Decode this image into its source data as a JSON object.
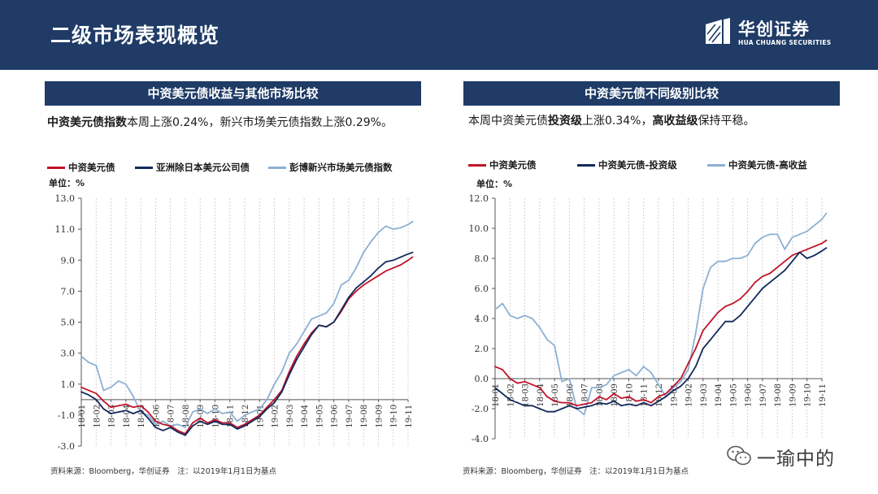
{
  "header": {
    "title": "二级市场表现概览",
    "logo_cn": "华创证券",
    "logo_en": "HUA CHUANG SECURITIES",
    "bg_color": "#1f3b66"
  },
  "left_panel": {
    "title": "中资美元债收益与其他市场比较",
    "desc_bold": "中资美元债指数",
    "desc_rest": "本周上涨0.24%，新兴市场美元债指数上涨0.29%。",
    "unit": "单位：%",
    "source": "资料来源：Bloomberg，华创证券　注：以2019年1月1日为基点"
  },
  "right_panel": {
    "title": "中资美元债不同级别比较",
    "desc_p1": "本周中资美元债",
    "desc_b1": "投资级",
    "desc_p2": "上涨0.34%，",
    "desc_b2": "高收益级",
    "desc_p3": "保持平稳。",
    "unit": "单位：%",
    "source": "资料来源：Bloomberg，华创证券　注：以2019年1月1日为基点"
  },
  "watermark": {
    "text": "一瑜中的"
  },
  "colors": {
    "red": "#c0142a",
    "navy": "#142a5c",
    "light": "#8db0d3"
  },
  "chart_data": [
    {
      "type": "line",
      "title": "中资美元债收益与其他市场比较",
      "ylabel": "单位：%",
      "ylim": [
        -3.0,
        13.0
      ],
      "yticks": [
        -3.0,
        -1.0,
        1.0,
        3.0,
        5.0,
        7.0,
        9.0,
        11.0,
        13.0
      ],
      "ytick_labels": [
        "-3.0",
        "-1.0",
        "1.0",
        "3.0",
        "5.0",
        "7.0",
        "9.0",
        "11.0",
        "13.0"
      ],
      "categories": [
        "18-01",
        "18-02",
        "18-03",
        "18-04",
        "18-05",
        "18-06",
        "18-07",
        "18-08",
        "18-09",
        "18-10",
        "18-11",
        "18-12",
        "19-01",
        "19-02",
        "19-03",
        "19-04",
        "19-05",
        "19-06",
        "19-07",
        "19-08",
        "19-09",
        "19-10",
        "19-11"
      ],
      "x": [
        0,
        0.5,
        1,
        1.5,
        2,
        2.5,
        3,
        3.5,
        4,
        4.5,
        5,
        5.5,
        6,
        6.5,
        7,
        7.5,
        8,
        8.5,
        9,
        9.5,
        10,
        10.5,
        11,
        11.5,
        12,
        12.5,
        13,
        13.5,
        14,
        14.5,
        15,
        15.5,
        16,
        16.5,
        17,
        17.5,
        18,
        18.5,
        19,
        19.5,
        20,
        20.5,
        21,
        21.5,
        22,
        22.3
      ],
      "series": [
        {
          "name": "中资美元债",
          "color": "#c0142a",
          "values": [
            0.8,
            0.6,
            0.4,
            -0.1,
            -0.5,
            -0.4,
            -0.3,
            -0.5,
            -0.4,
            -0.8,
            -1.4,
            -1.6,
            -1.7,
            -2.0,
            -2.2,
            -1.5,
            -1.2,
            -1.5,
            -1.3,
            -1.5,
            -1.5,
            -1.8,
            -1.6,
            -1.3,
            -1.0,
            -0.5,
            0.0,
            0.6,
            1.8,
            2.8,
            3.6,
            4.3,
            4.8,
            4.7,
            5.0,
            5.7,
            6.5,
            7.0,
            7.4,
            7.7,
            8.0,
            8.3,
            8.5,
            8.7,
            9.0,
            9.2
          ]
        },
        {
          "name": "亚洲除日本美元公司债",
          "color": "#142a5c",
          "values": [
            0.5,
            0.3,
            0.0,
            -0.6,
            -0.9,
            -0.8,
            -0.7,
            -0.9,
            -0.7,
            -1.2,
            -1.8,
            -2.0,
            -1.8,
            -2.1,
            -2.3,
            -1.7,
            -1.4,
            -1.6,
            -1.4,
            -1.6,
            -1.6,
            -1.9,
            -1.7,
            -1.4,
            -1.1,
            -0.6,
            -0.2,
            0.5,
            1.6,
            2.6,
            3.4,
            4.2,
            4.8,
            4.7,
            5.0,
            5.8,
            6.6,
            7.2,
            7.6,
            8.0,
            8.5,
            8.9,
            9.0,
            9.2,
            9.4,
            9.5
          ]
        },
        {
          "name": "彭博新兴市场美元债指数",
          "color": "#8db0d3",
          "values": [
            2.8,
            2.4,
            2.2,
            0.6,
            0.8,
            1.2,
            1.0,
            0.2,
            -0.8,
            -1.0,
            -1.6,
            -1.4,
            -1.7,
            -1.6,
            -1.8,
            -0.8,
            -0.6,
            -0.9,
            -0.6,
            -0.9,
            -0.8,
            -1.4,
            -1.0,
            -0.8,
            -0.6,
            0.0,
            1.0,
            1.8,
            3.0,
            3.6,
            4.4,
            5.2,
            5.4,
            5.6,
            6.2,
            7.4,
            7.7,
            8.5,
            9.5,
            10.2,
            10.8,
            11.2,
            11.0,
            11.1,
            11.3,
            11.5
          ]
        }
      ],
      "legend": [
        "中资美元债",
        "亚洲除日本美元公司债",
        "彭博新兴市场美元债指数"
      ],
      "grid": true
    },
    {
      "type": "line",
      "title": "中资美元债不同级别比较",
      "ylabel": "单位：%",
      "ylim": [
        -4.0,
        12.0
      ],
      "yticks": [
        -4.0,
        -2.0,
        0.0,
        2.0,
        4.0,
        6.0,
        8.0,
        10.0,
        12.0
      ],
      "ytick_labels": [
        "-4.0",
        "-2.0",
        "0.0",
        "2.0",
        "4.0",
        "6.0",
        "8.0",
        "10.0",
        "12.0"
      ],
      "categories": [
        "18-01",
        "18-02",
        "18-03",
        "18-04",
        "18-05",
        "18-06",
        "18-07",
        "18-08",
        "18-09",
        "18-10",
        "18-11",
        "18-12",
        "19-01",
        "19-02",
        "19-03",
        "19-04",
        "19-05",
        "19-06",
        "19-07",
        "19-08",
        "19-09",
        "19-10",
        "19-11"
      ],
      "x": [
        0,
        0.5,
        1,
        1.5,
        2,
        2.5,
        3,
        3.5,
        4,
        4.5,
        5,
        5.5,
        6,
        6.5,
        7,
        7.5,
        8,
        8.5,
        9,
        9.5,
        10,
        10.5,
        11,
        11.5,
        12,
        12.5,
        13,
        13.5,
        14,
        14.5,
        15,
        15.5,
        16,
        16.5,
        17,
        17.5,
        18,
        18.5,
        19,
        19.5,
        20,
        20.5,
        21,
        21.5,
        22,
        22.3
      ],
      "series": [
        {
          "name": "中资美元债",
          "color": "#c0142a",
          "values": [
            0.8,
            0.6,
            0.0,
            -0.3,
            -0.2,
            -0.4,
            -0.6,
            -1.2,
            -1.5,
            -1.6,
            -1.6,
            -1.8,
            -1.7,
            -1.6,
            -1.2,
            -1.4,
            -1.0,
            -1.3,
            -1.2,
            -1.5,
            -1.4,
            -1.6,
            -1.2,
            -1.0,
            -0.5,
            0.0,
            1.0,
            2.0,
            3.2,
            3.8,
            4.4,
            4.8,
            5.0,
            5.3,
            5.8,
            6.4,
            6.8,
            7.0,
            7.4,
            7.8,
            8.2,
            8.4,
            8.6,
            8.8,
            9.0,
            9.2
          ]
        },
        {
          "name": "中资美元债-投资级",
          "color": "#142a5c",
          "values": [
            -0.6,
            -1.0,
            -1.4,
            -1.6,
            -1.8,
            -1.8,
            -2.0,
            -2.2,
            -2.2,
            -2.0,
            -1.8,
            -2.0,
            -1.9,
            -1.8,
            -1.6,
            -1.7,
            -1.5,
            -1.8,
            -1.7,
            -1.8,
            -1.6,
            -1.8,
            -1.5,
            -1.2,
            -0.8,
            -0.5,
            0.0,
            0.8,
            2.0,
            2.6,
            3.2,
            3.8,
            3.8,
            4.2,
            4.8,
            5.4,
            6.0,
            6.4,
            6.8,
            7.2,
            7.8,
            8.4,
            8.0,
            8.2,
            8.5,
            8.7
          ]
        },
        {
          "name": "中资美元债-高收益",
          "color": "#8db0d3",
          "values": [
            4.6,
            5.0,
            4.2,
            4.0,
            4.2,
            4.0,
            3.4,
            2.6,
            2.2,
            -0.2,
            0.0,
            -2.0,
            -2.4,
            -0.6,
            -0.6,
            -0.4,
            0.2,
            0.4,
            0.6,
            0.2,
            0.8,
            0.4,
            -0.4,
            -1.2,
            -0.6,
            -0.2,
            0.6,
            3.0,
            6.0,
            7.4,
            7.8,
            7.8,
            8.0,
            8.0,
            8.2,
            9.0,
            9.4,
            9.6,
            9.6,
            8.6,
            9.4,
            9.6,
            9.8,
            10.2,
            10.6,
            11.0
          ]
        }
      ],
      "legend": [
        "中资美元债",
        "中资美元债-投资级",
        "中资美元债-高收益"
      ],
      "grid": true
    }
  ]
}
